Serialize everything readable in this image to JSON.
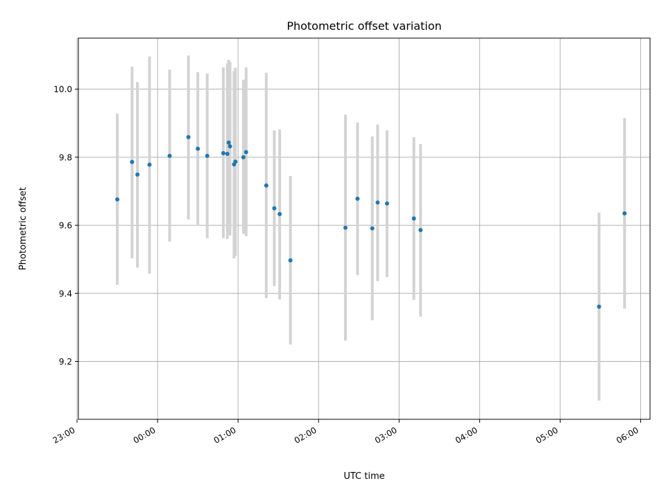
{
  "chart_data": {
    "type": "scatter",
    "title": "Photometric offset variation",
    "xlabel": "UTC time",
    "ylabel": "Photometric offset",
    "x_tick_labels": [
      "23:00",
      "00:00",
      "01:00",
      "02:00",
      "03:00",
      "04:00",
      "05:00",
      "06:00"
    ],
    "y_tick_labels": [
      "9.2",
      "9.4",
      "9.6",
      "9.8",
      "10.0"
    ],
    "y_ticks": [
      9.2,
      9.4,
      9.6,
      9.8,
      10.0
    ],
    "xlim": [
      "23:01",
      "06:07"
    ],
    "ylim": [
      9.03,
      10.15
    ],
    "grid": true,
    "point_color": "#1f77b4",
    "errorbar_color": "#d3d3d3",
    "points": [
      {
        "x": "23:30",
        "y": 9.676,
        "ylow": 9.425,
        "yhigh": 9.928
      },
      {
        "x": "23:45",
        "y": 9.749,
        "ylow": 9.476,
        "yhigh": 10.021
      },
      {
        "x": "23:41",
        "y": 9.786,
        "ylow": 9.503,
        "yhigh": 10.066
      },
      {
        "x": "23:54",
        "y": 9.778,
        "ylow": 9.458,
        "yhigh": 10.096
      },
      {
        "x": "00:09",
        "y": 9.804,
        "ylow": 9.552,
        "yhigh": 10.057
      },
      {
        "x": "00:23",
        "y": 9.859,
        "ylow": 9.617,
        "yhigh": 10.099
      },
      {
        "x": "00:30",
        "y": 9.825,
        "ylow": 9.599,
        "yhigh": 10.05
      },
      {
        "x": "00:37",
        "y": 9.804,
        "ylow": 9.562,
        "yhigh": 10.046
      },
      {
        "x": "00:49",
        "y": 9.812,
        "ylow": 9.562,
        "yhigh": 10.064
      },
      {
        "x": "00:52",
        "y": 9.81,
        "ylow": 9.56,
        "yhigh": 10.076
      },
      {
        "x": "00:53",
        "y": 9.843,
        "ylow": 9.6,
        "yhigh": 10.086
      },
      {
        "x": "00:54",
        "y": 9.832,
        "ylow": 9.57,
        "yhigh": 10.08
      },
      {
        "x": "00:57",
        "y": 9.779,
        "ylow": 9.503,
        "yhigh": 10.053
      },
      {
        "x": "00:58",
        "y": 9.787,
        "ylow": 9.51,
        "yhigh": 10.063
      },
      {
        "x": "01:04",
        "y": 9.8,
        "ylow": 9.575,
        "yhigh": 10.028
      },
      {
        "x": "01:06",
        "y": 9.815,
        "ylow": 9.568,
        "yhigh": 10.064
      },
      {
        "x": "01:21",
        "y": 9.717,
        "ylow": 9.386,
        "yhigh": 10.048
      },
      {
        "x": "01:27",
        "y": 9.65,
        "ylow": 9.421,
        "yhigh": 9.879
      },
      {
        "x": "01:31",
        "y": 9.633,
        "ylow": 9.382,
        "yhigh": 9.882
      },
      {
        "x": "01:39",
        "y": 9.497,
        "ylow": 9.25,
        "yhigh": 9.745
      },
      {
        "x": "02:20",
        "y": 9.593,
        "ylow": 9.261,
        "yhigh": 9.925
      },
      {
        "x": "02:29",
        "y": 9.678,
        "ylow": 9.454,
        "yhigh": 9.902
      },
      {
        "x": "02:40",
        "y": 9.591,
        "ylow": 9.321,
        "yhigh": 9.861
      },
      {
        "x": "02:44",
        "y": 9.667,
        "ylow": 9.436,
        "yhigh": 9.896
      },
      {
        "x": "02:51",
        "y": 9.664,
        "ylow": 9.448,
        "yhigh": 9.879
      },
      {
        "x": "03:11",
        "y": 9.62,
        "ylow": 9.381,
        "yhigh": 9.859
      },
      {
        "x": "03:16",
        "y": 9.586,
        "ylow": 9.332,
        "yhigh": 9.839
      },
      {
        "x": "05:29",
        "y": 9.361,
        "ylow": 9.085,
        "yhigh": 9.637
      },
      {
        "x": "05:48",
        "y": 9.635,
        "ylow": 9.355,
        "yhigh": 9.915
      }
    ]
  }
}
